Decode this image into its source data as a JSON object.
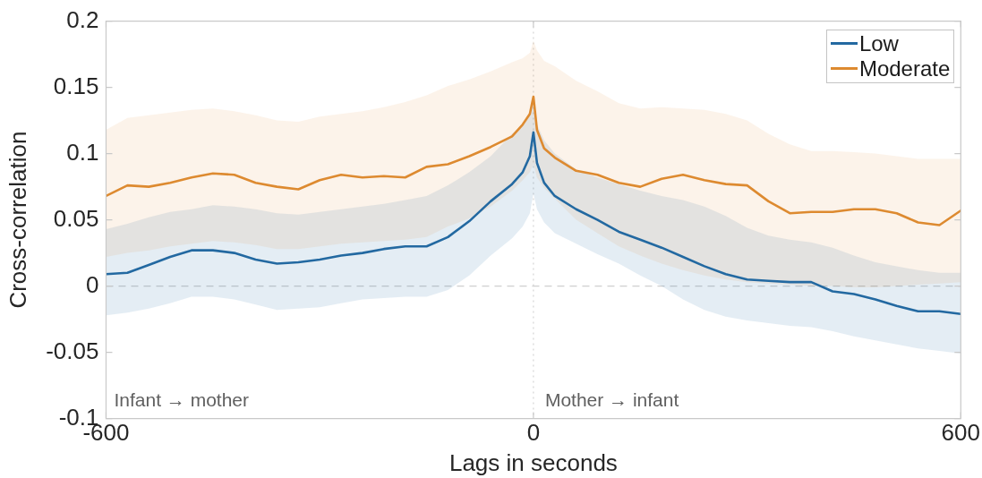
{
  "chart_data": {
    "type": "line",
    "xlabel": "Lags in seconds",
    "ylabel": "Cross-correlation",
    "x": [
      -600,
      -570,
      -540,
      -510,
      -480,
      -450,
      -420,
      -390,
      -360,
      -330,
      -300,
      -270,
      -240,
      -210,
      -180,
      -150,
      -120,
      -90,
      -60,
      -30,
      -15,
      -5,
      0,
      5,
      15,
      30,
      60,
      90,
      120,
      150,
      180,
      210,
      240,
      270,
      300,
      330,
      360,
      390,
      420,
      450,
      480,
      510,
      540,
      570,
      600
    ],
    "series": [
      {
        "name": "Low",
        "color": "#2369a1",
        "values": [
          0.009,
          0.01,
          0.016,
          0.022,
          0.027,
          0.027,
          0.025,
          0.02,
          0.017,
          0.018,
          0.02,
          0.023,
          0.025,
          0.028,
          0.03,
          0.03,
          0.037,
          0.049,
          0.064,
          0.077,
          0.086,
          0.098,
          0.116,
          0.093,
          0.078,
          0.068,
          0.058,
          0.05,
          0.041,
          0.035,
          0.029,
          0.022,
          0.015,
          0.009,
          0.005,
          0.004,
          0.003,
          0.003,
          -0.004,
          -0.006,
          -0.01,
          -0.015,
          -0.019,
          -0.019,
          -0.021
        ],
        "upper": [
          0.043,
          0.047,
          0.052,
          0.056,
          0.058,
          0.061,
          0.06,
          0.058,
          0.055,
          0.054,
          0.056,
          0.058,
          0.06,
          0.062,
          0.065,
          0.068,
          0.076,
          0.086,
          0.098,
          0.115,
          0.122,
          0.13,
          0.145,
          0.122,
          0.11,
          0.1,
          0.088,
          0.082,
          0.077,
          0.072,
          0.068,
          0.065,
          0.06,
          0.053,
          0.044,
          0.038,
          0.035,
          0.033,
          0.029,
          0.023,
          0.018,
          0.015,
          0.012,
          0.01,
          0.01
        ],
        "lower": [
          -0.022,
          -0.02,
          -0.017,
          -0.013,
          -0.008,
          -0.008,
          -0.01,
          -0.014,
          -0.018,
          -0.017,
          -0.016,
          -0.013,
          -0.01,
          -0.009,
          -0.008,
          -0.008,
          -0.003,
          0.008,
          0.023,
          0.036,
          0.045,
          0.055,
          0.07,
          0.058,
          0.048,
          0.04,
          0.032,
          0.024,
          0.017,
          0.008,
          0.0,
          -0.01,
          -0.018,
          -0.023,
          -0.026,
          -0.028,
          -0.03,
          -0.031,
          -0.034,
          -0.038,
          -0.041,
          -0.044,
          -0.047,
          -0.049,
          -0.051
        ]
      },
      {
        "name": "Moderate",
        "color": "#dd8a30",
        "values": [
          0.068,
          0.076,
          0.075,
          0.078,
          0.082,
          0.085,
          0.084,
          0.078,
          0.075,
          0.073,
          0.08,
          0.084,
          0.082,
          0.083,
          0.082,
          0.09,
          0.092,
          0.098,
          0.105,
          0.113,
          0.122,
          0.13,
          0.143,
          0.118,
          0.104,
          0.097,
          0.087,
          0.084,
          0.078,
          0.075,
          0.081,
          0.084,
          0.08,
          0.077,
          0.076,
          0.064,
          0.055,
          0.056,
          0.056,
          0.058,
          0.058,
          0.055,
          0.048,
          0.046,
          0.057
        ],
        "upper": [
          0.118,
          0.127,
          0.129,
          0.131,
          0.133,
          0.134,
          0.132,
          0.129,
          0.125,
          0.124,
          0.128,
          0.13,
          0.132,
          0.135,
          0.139,
          0.144,
          0.151,
          0.156,
          0.162,
          0.169,
          0.172,
          0.176,
          0.185,
          0.178,
          0.17,
          0.166,
          0.155,
          0.147,
          0.138,
          0.134,
          0.135,
          0.134,
          0.133,
          0.13,
          0.125,
          0.115,
          0.107,
          0.102,
          0.102,
          0.101,
          0.1,
          0.098,
          0.096,
          0.096,
          0.096
        ],
        "lower": [
          0.022,
          0.025,
          0.027,
          0.03,
          0.032,
          0.034,
          0.033,
          0.031,
          0.028,
          0.028,
          0.03,
          0.032,
          0.033,
          0.034,
          0.035,
          0.037,
          0.045,
          0.051,
          0.06,
          0.072,
          0.08,
          0.086,
          0.092,
          0.082,
          0.074,
          0.066,
          0.05,
          0.04,
          0.03,
          0.023,
          0.017,
          0.012,
          0.008,
          0.005,
          0.003,
          0.002,
          0.001,
          0.0,
          0.0,
          -0.001,
          -0.001,
          0.0,
          0.001,
          0.002,
          0.003
        ]
      }
    ],
    "xlim": [
      -600,
      600
    ],
    "xticks": [
      -600,
      0,
      600
    ],
    "ylim": [
      -0.1,
      0.2
    ],
    "yticks": [
      -0.1,
      -0.05,
      0,
      0.05,
      0.1,
      0.15,
      0.2
    ],
    "ref_lines": [
      {
        "axis": "y",
        "value": 0,
        "color": "#cfcfcf",
        "line_style": "dashed"
      },
      {
        "axis": "x",
        "value": 0,
        "color": "#d4d4d4",
        "line_style": "dotted"
      }
    ],
    "annotations": [
      "Infant → mother",
      "Mother → infant"
    ],
    "legend": "top right"
  }
}
